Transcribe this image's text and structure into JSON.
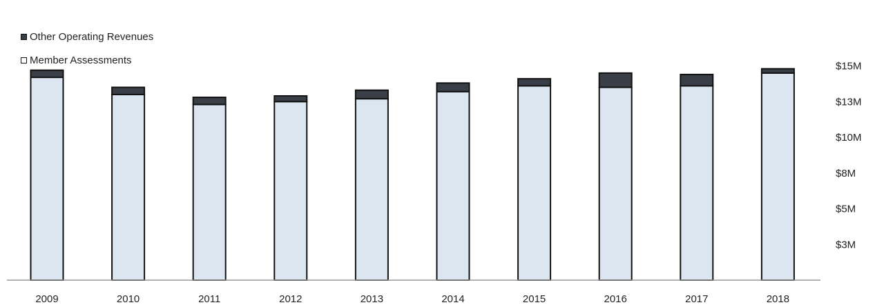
{
  "chart_data": {
    "type": "bar",
    "stacked": true,
    "categories": [
      "2009",
      "2010",
      "2011",
      "2012",
      "2013",
      "2014",
      "2015",
      "2016",
      "2017",
      "2018"
    ],
    "series": [
      {
        "name": "Member Assessments",
        "color": "#dce6f1",
        "values": [
          14.2,
          13.0,
          12.3,
          12.5,
          12.7,
          13.2,
          13.6,
          13.5,
          13.6,
          14.5
        ]
      },
      {
        "name": "Other Operating Revenues",
        "color": "#3a3f47",
        "values": [
          0.5,
          0.5,
          0.5,
          0.4,
          0.6,
          0.6,
          0.5,
          1.0,
          0.8,
          0.3
        ]
      }
    ],
    "y_tick_labels": [
      "$3M",
      "$5M",
      "$8M",
      "$10M",
      "$13M",
      "$15M"
    ],
    "y_tick_values": [
      2.5,
      5,
      7.5,
      10,
      12.5,
      15
    ],
    "ylim": [
      0,
      16
    ],
    "y_axis_side": "right",
    "legend_position": "top-left",
    "grid": false
  }
}
